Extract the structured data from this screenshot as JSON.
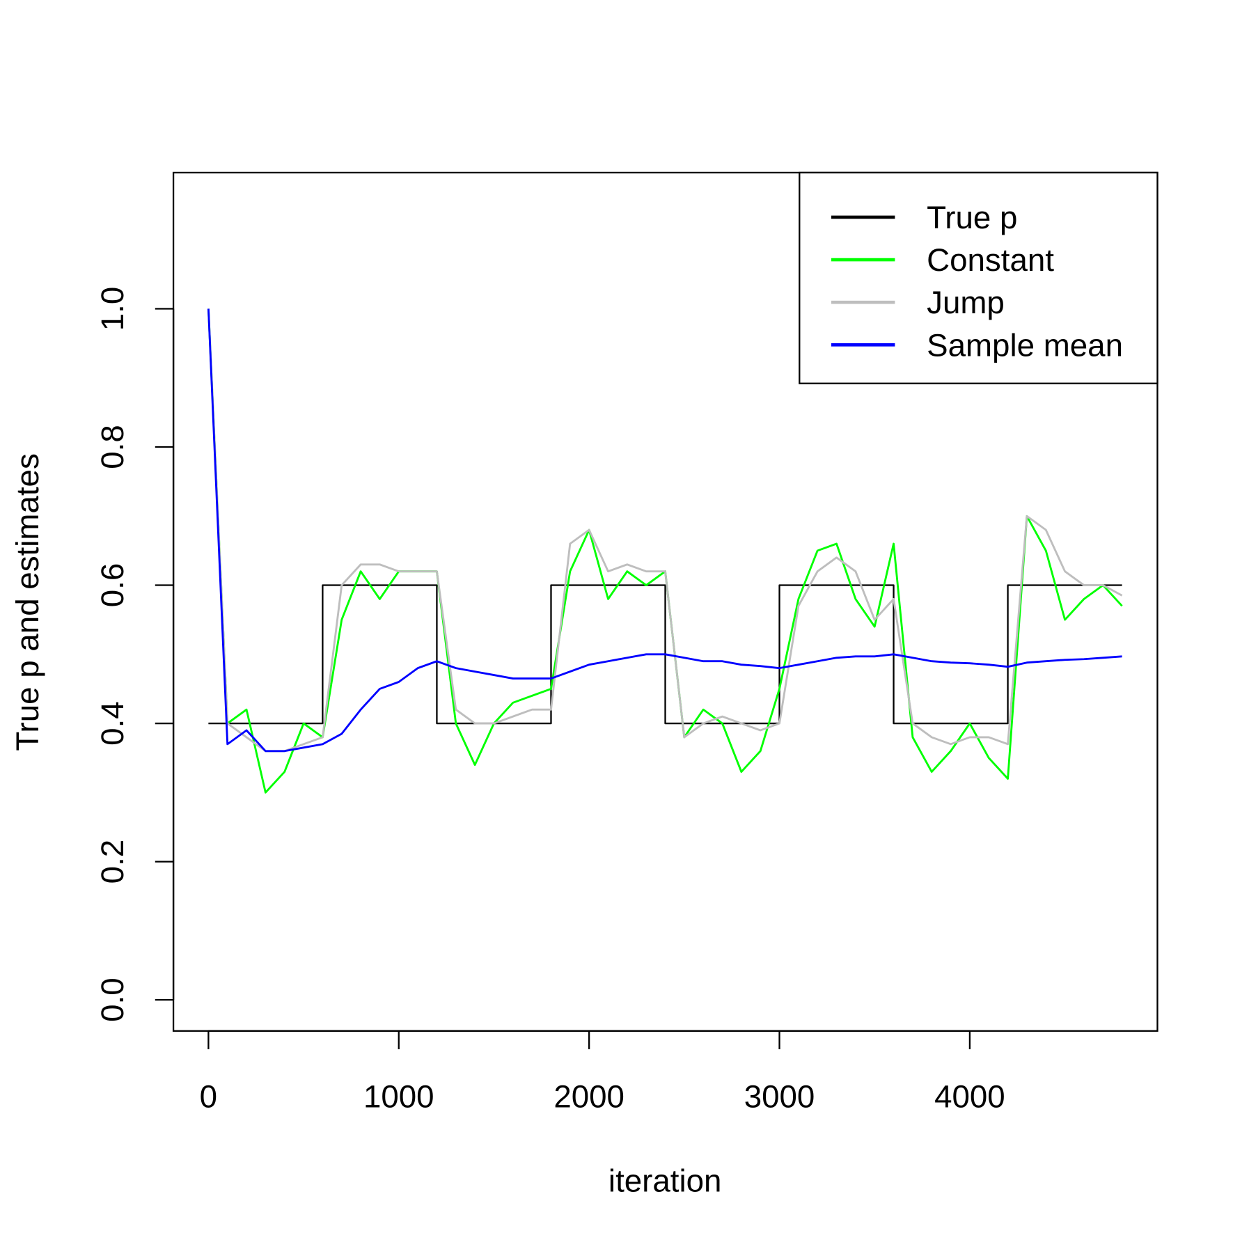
{
  "chart_data": {
    "type": "line",
    "x_label": "iteration",
    "y_label": "True p and estimates",
    "xlim": [
      -184,
      4986
    ],
    "ylim": [
      -0.045,
      1.197
    ],
    "xticks": [
      0,
      1000,
      2000,
      3000,
      4000
    ],
    "yticks": [
      {
        "value": 0,
        "label": "0.0"
      },
      0.2,
      0.4,
      0.6,
      0.8,
      {
        "value": 1,
        "label": "1.0"
      }
    ],
    "legend": "topright",
    "x": [
      0,
      100,
      200,
      300,
      400,
      500,
      600,
      700,
      800,
      900,
      1000,
      1100,
      1200,
      1300,
      1400,
      1500,
      1600,
      1700,
      1800,
      1900,
      2000,
      2100,
      2200,
      2300,
      2400,
      2500,
      2600,
      2700,
      2800,
      2900,
      3000,
      3100,
      3200,
      3300,
      3400,
      3500,
      3600,
      3700,
      3800,
      3900,
      4000,
      4100,
      4200,
      4300,
      4400,
      4500,
      4600,
      4700,
      4800
    ],
    "series": [
      {
        "name": "True p",
        "color": "#000000",
        "x": [
          0,
          600,
          600,
          1200,
          1200,
          1800,
          1800,
          2400,
          2400,
          3000,
          3000,
          3600,
          3600,
          4200,
          4200,
          4800
        ],
        "values": [
          0.4,
          0.4,
          0.6,
          0.6,
          0.4,
          0.4,
          0.6,
          0.6,
          0.4,
          0.4,
          0.6,
          0.6,
          0.4,
          0.4,
          0.6,
          0.6
        ]
      },
      {
        "name": "Constant",
        "color": "#00ff00",
        "values": [
          1.0,
          0.4,
          0.42,
          0.3,
          0.33,
          0.4,
          0.38,
          0.55,
          0.62,
          0.58,
          0.62,
          0.62,
          0.62,
          0.4,
          0.34,
          0.4,
          0.43,
          0.44,
          0.45,
          0.62,
          0.68,
          0.58,
          0.62,
          0.6,
          0.62,
          0.38,
          0.42,
          0.4,
          0.33,
          0.36,
          0.45,
          0.58,
          0.65,
          0.66,
          0.58,
          0.54,
          0.66,
          0.38,
          0.33,
          0.36,
          0.4,
          0.35,
          0.32,
          0.7,
          0.65,
          0.55,
          0.58,
          0.6,
          0.57
        ]
      },
      {
        "name": "Jump",
        "color": "#bebebe",
        "values": [
          1.0,
          0.4,
          0.38,
          0.36,
          0.36,
          0.37,
          0.38,
          0.6,
          0.63,
          0.63,
          0.62,
          0.62,
          0.62,
          0.42,
          0.4,
          0.4,
          0.41,
          0.42,
          0.42,
          0.66,
          0.68,
          0.62,
          0.63,
          0.62,
          0.62,
          0.38,
          0.4,
          0.41,
          0.4,
          0.39,
          0.4,
          0.57,
          0.62,
          0.64,
          0.62,
          0.55,
          0.58,
          0.4,
          0.38,
          0.37,
          0.38,
          0.38,
          0.37,
          0.7,
          0.68,
          0.62,
          0.6,
          0.6,
          0.585
        ]
      },
      {
        "name": "Sample mean",
        "color": "#0000ff",
        "values": [
          1.0,
          0.37,
          0.39,
          0.36,
          0.36,
          0.365,
          0.37,
          0.385,
          0.42,
          0.45,
          0.46,
          0.48,
          0.49,
          0.48,
          0.475,
          0.47,
          0.465,
          0.465,
          0.465,
          0.475,
          0.485,
          0.49,
          0.495,
          0.5,
          0.5,
          0.495,
          0.49,
          0.49,
          0.485,
          0.483,
          0.48,
          0.485,
          0.49,
          0.495,
          0.497,
          0.497,
          0.5,
          0.495,
          0.49,
          0.488,
          0.487,
          0.485,
          0.482,
          0.488,
          0.49,
          0.492,
          0.493,
          0.495,
          0.497
        ]
      }
    ]
  }
}
